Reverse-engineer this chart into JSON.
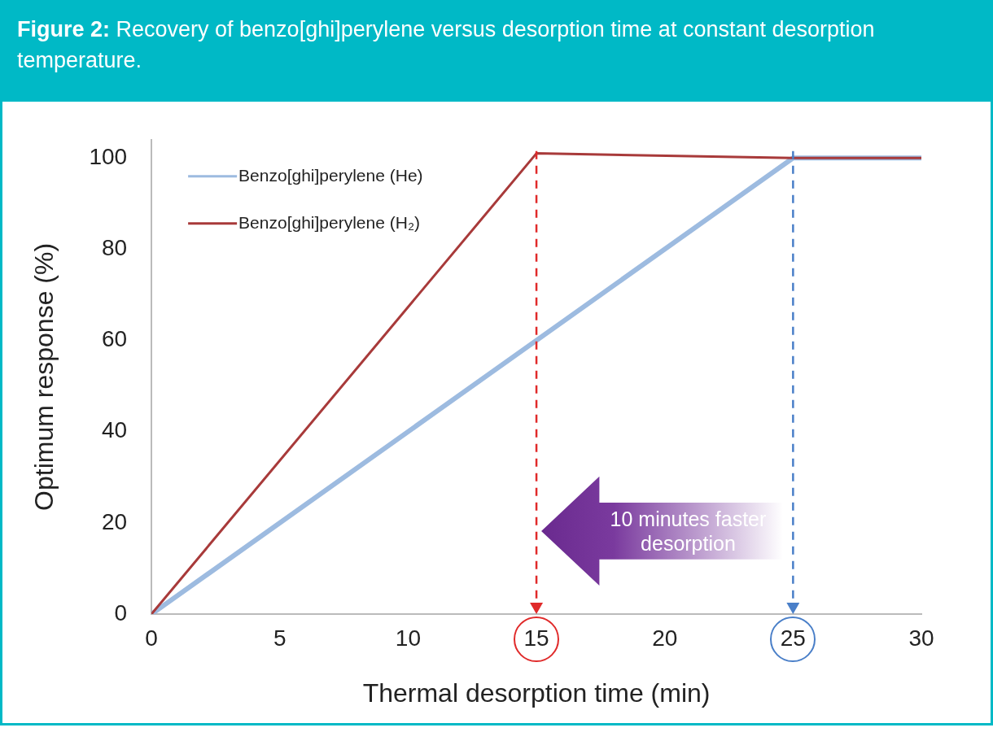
{
  "chart_data": {
    "type": "line",
    "title": "Figure 2: Recovery of benzo[ghi]perylene versus desorption time at constant desorption temperature.",
    "xlabel": "Thermal desorption time (min)",
    "ylabel": "Optimum response (%)",
    "xlim": [
      0,
      30
    ],
    "xticks": [
      0,
      5,
      10,
      15,
      20,
      25,
      30
    ],
    "ylim": [
      0,
      104
    ],
    "yticks": [
      0,
      20,
      40,
      60,
      80,
      100
    ],
    "grid": false,
    "legend": "top left",
    "marker": "none",
    "line_style": "solid",
    "series": [
      {
        "name": "Benzo[ghi]perylene (He)",
        "color": "#9dbbe0",
        "x": [
          0,
          25,
          30
        ],
        "values": [
          0,
          100,
          100
        ]
      },
      {
        "name": "Benzo[ghi]perylene (H₂)",
        "color": "#a83a3a",
        "x": [
          0,
          15,
          25,
          30
        ],
        "values": [
          0,
          101,
          100,
          100
        ]
      }
    ],
    "ref_lines": [
      {
        "axis": "x",
        "value": 15,
        "color": "#e02a2a",
        "line_style": "dashed"
      },
      {
        "axis": "x",
        "value": 25,
        "color": "#4a7fc8",
        "line_style": "dashed"
      }
    ],
    "annotations": [
      "10 minutes faster desorption"
    ]
  }
}
